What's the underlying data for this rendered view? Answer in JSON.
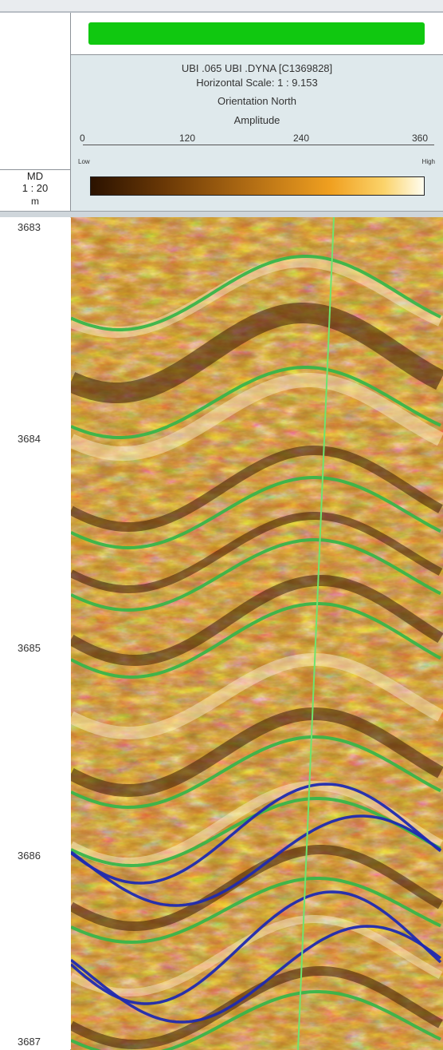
{
  "header": {
    "line1": "UBI  .065 UBI .DYNA [C1369828]",
    "line2": "Horizontal Scale: 1 : 9.153",
    "line3": "Orientation North",
    "line4": "Amplitude",
    "scale_ticks": [
      "0",
      "120",
      "240",
      "360"
    ],
    "low_label": "Low",
    "high_label": "High",
    "status_color": "#10c810"
  },
  "md_column": {
    "label": "MD",
    "scale": "1 : 20",
    "unit": "m"
  },
  "depth_labels": [
    "3683",
    "3684",
    "3685",
    "3686",
    "3687"
  ],
  "colors": {
    "dip_curves": "#39b54a",
    "fracture_curves": "#1f2ab0",
    "orientation_line": "#6fe36f"
  }
}
